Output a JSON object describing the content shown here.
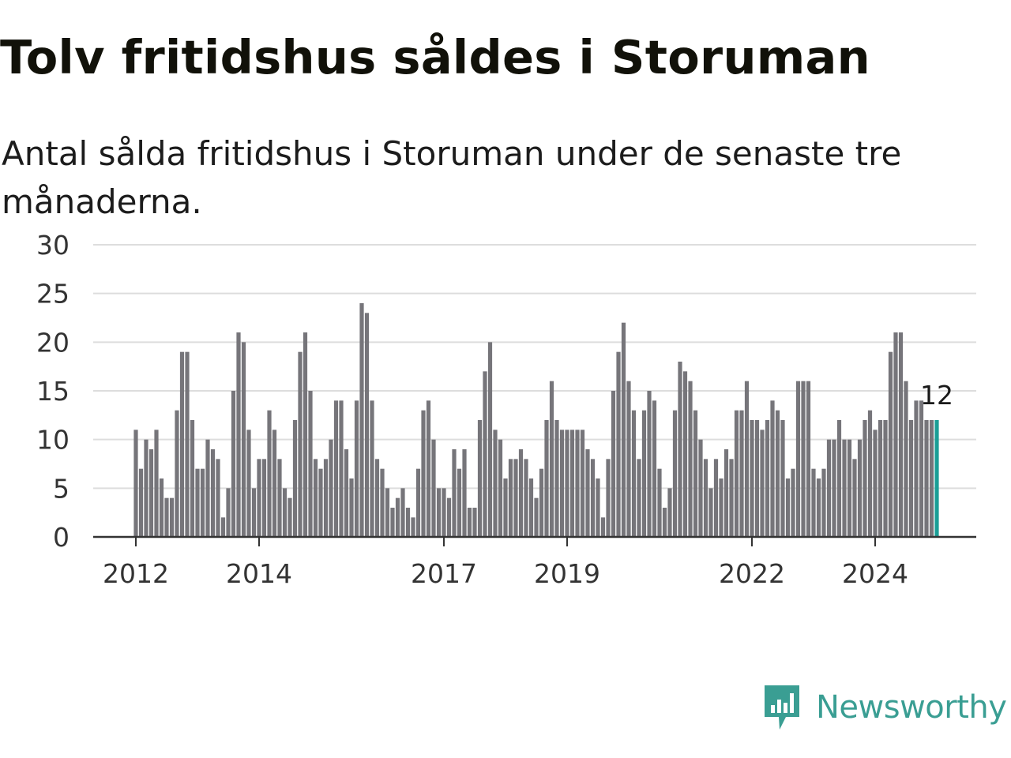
{
  "title": "Tolv fritidshus såldes i Storuman",
  "subtitle": "Antal sålda fritidshus i Storuman under de senaste tre månaderna.",
  "brand": {
    "name": "Newsworthy",
    "color": "#3a9e93",
    "icon": "newsworthy-chart-bubble-icon"
  },
  "colors": {
    "bar": "#76757a",
    "highlight": "#1a9e96",
    "grid": "#dddddd",
    "axis": "#333333"
  },
  "chart_data": {
    "type": "bar",
    "ylim": [
      0,
      30
    ],
    "yticks": [
      "0",
      "5",
      "10",
      "15",
      "20",
      "25",
      "30"
    ],
    "xticks": [
      {
        "label": "2012",
        "index": 0
      },
      {
        "label": "2014",
        "index": 24
      },
      {
        "label": "2017",
        "index": 60
      },
      {
        "label": "2019",
        "index": 84
      },
      {
        "label": "2022",
        "index": 120
      },
      {
        "label": "2024",
        "index": 144
      }
    ],
    "start": "2012-01",
    "frequency": "monthly",
    "values": [
      11,
      7,
      10,
      9,
      11,
      6,
      4,
      4,
      13,
      19,
      19,
      12,
      7,
      7,
      10,
      9,
      8,
      2,
      5,
      15,
      21,
      20,
      11,
      5,
      8,
      8,
      13,
      11,
      8,
      5,
      4,
      12,
      19,
      21,
      15,
      8,
      7,
      8,
      10,
      14,
      14,
      9,
      6,
      14,
      24,
      23,
      14,
      8,
      7,
      5,
      3,
      4,
      5,
      3,
      2,
      7,
      13,
      14,
      10,
      5,
      5,
      4,
      9,
      7,
      9,
      3,
      3,
      12,
      17,
      20,
      11,
      10,
      6,
      8,
      8,
      9,
      8,
      6,
      4,
      7,
      12,
      16,
      12,
      11,
      11,
      11,
      11,
      11,
      9,
      8,
      6,
      2,
      8,
      15,
      19,
      22,
      16,
      13,
      8,
      13,
      15,
      14,
      7,
      3,
      5,
      13,
      18,
      17,
      16,
      13,
      10,
      8,
      5,
      8,
      6,
      9,
      8,
      13,
      13,
      16,
      12,
      12,
      11,
      12,
      14,
      13,
      12,
      6,
      7,
      16,
      16,
      16,
      7,
      6,
      7,
      10,
      10,
      12,
      10,
      10,
      8,
      10,
      12,
      13,
      11,
      12,
      12,
      19,
      21,
      21,
      16,
      12,
      14,
      14,
      12,
      12,
      12
    ],
    "highlight_label": "12"
  }
}
